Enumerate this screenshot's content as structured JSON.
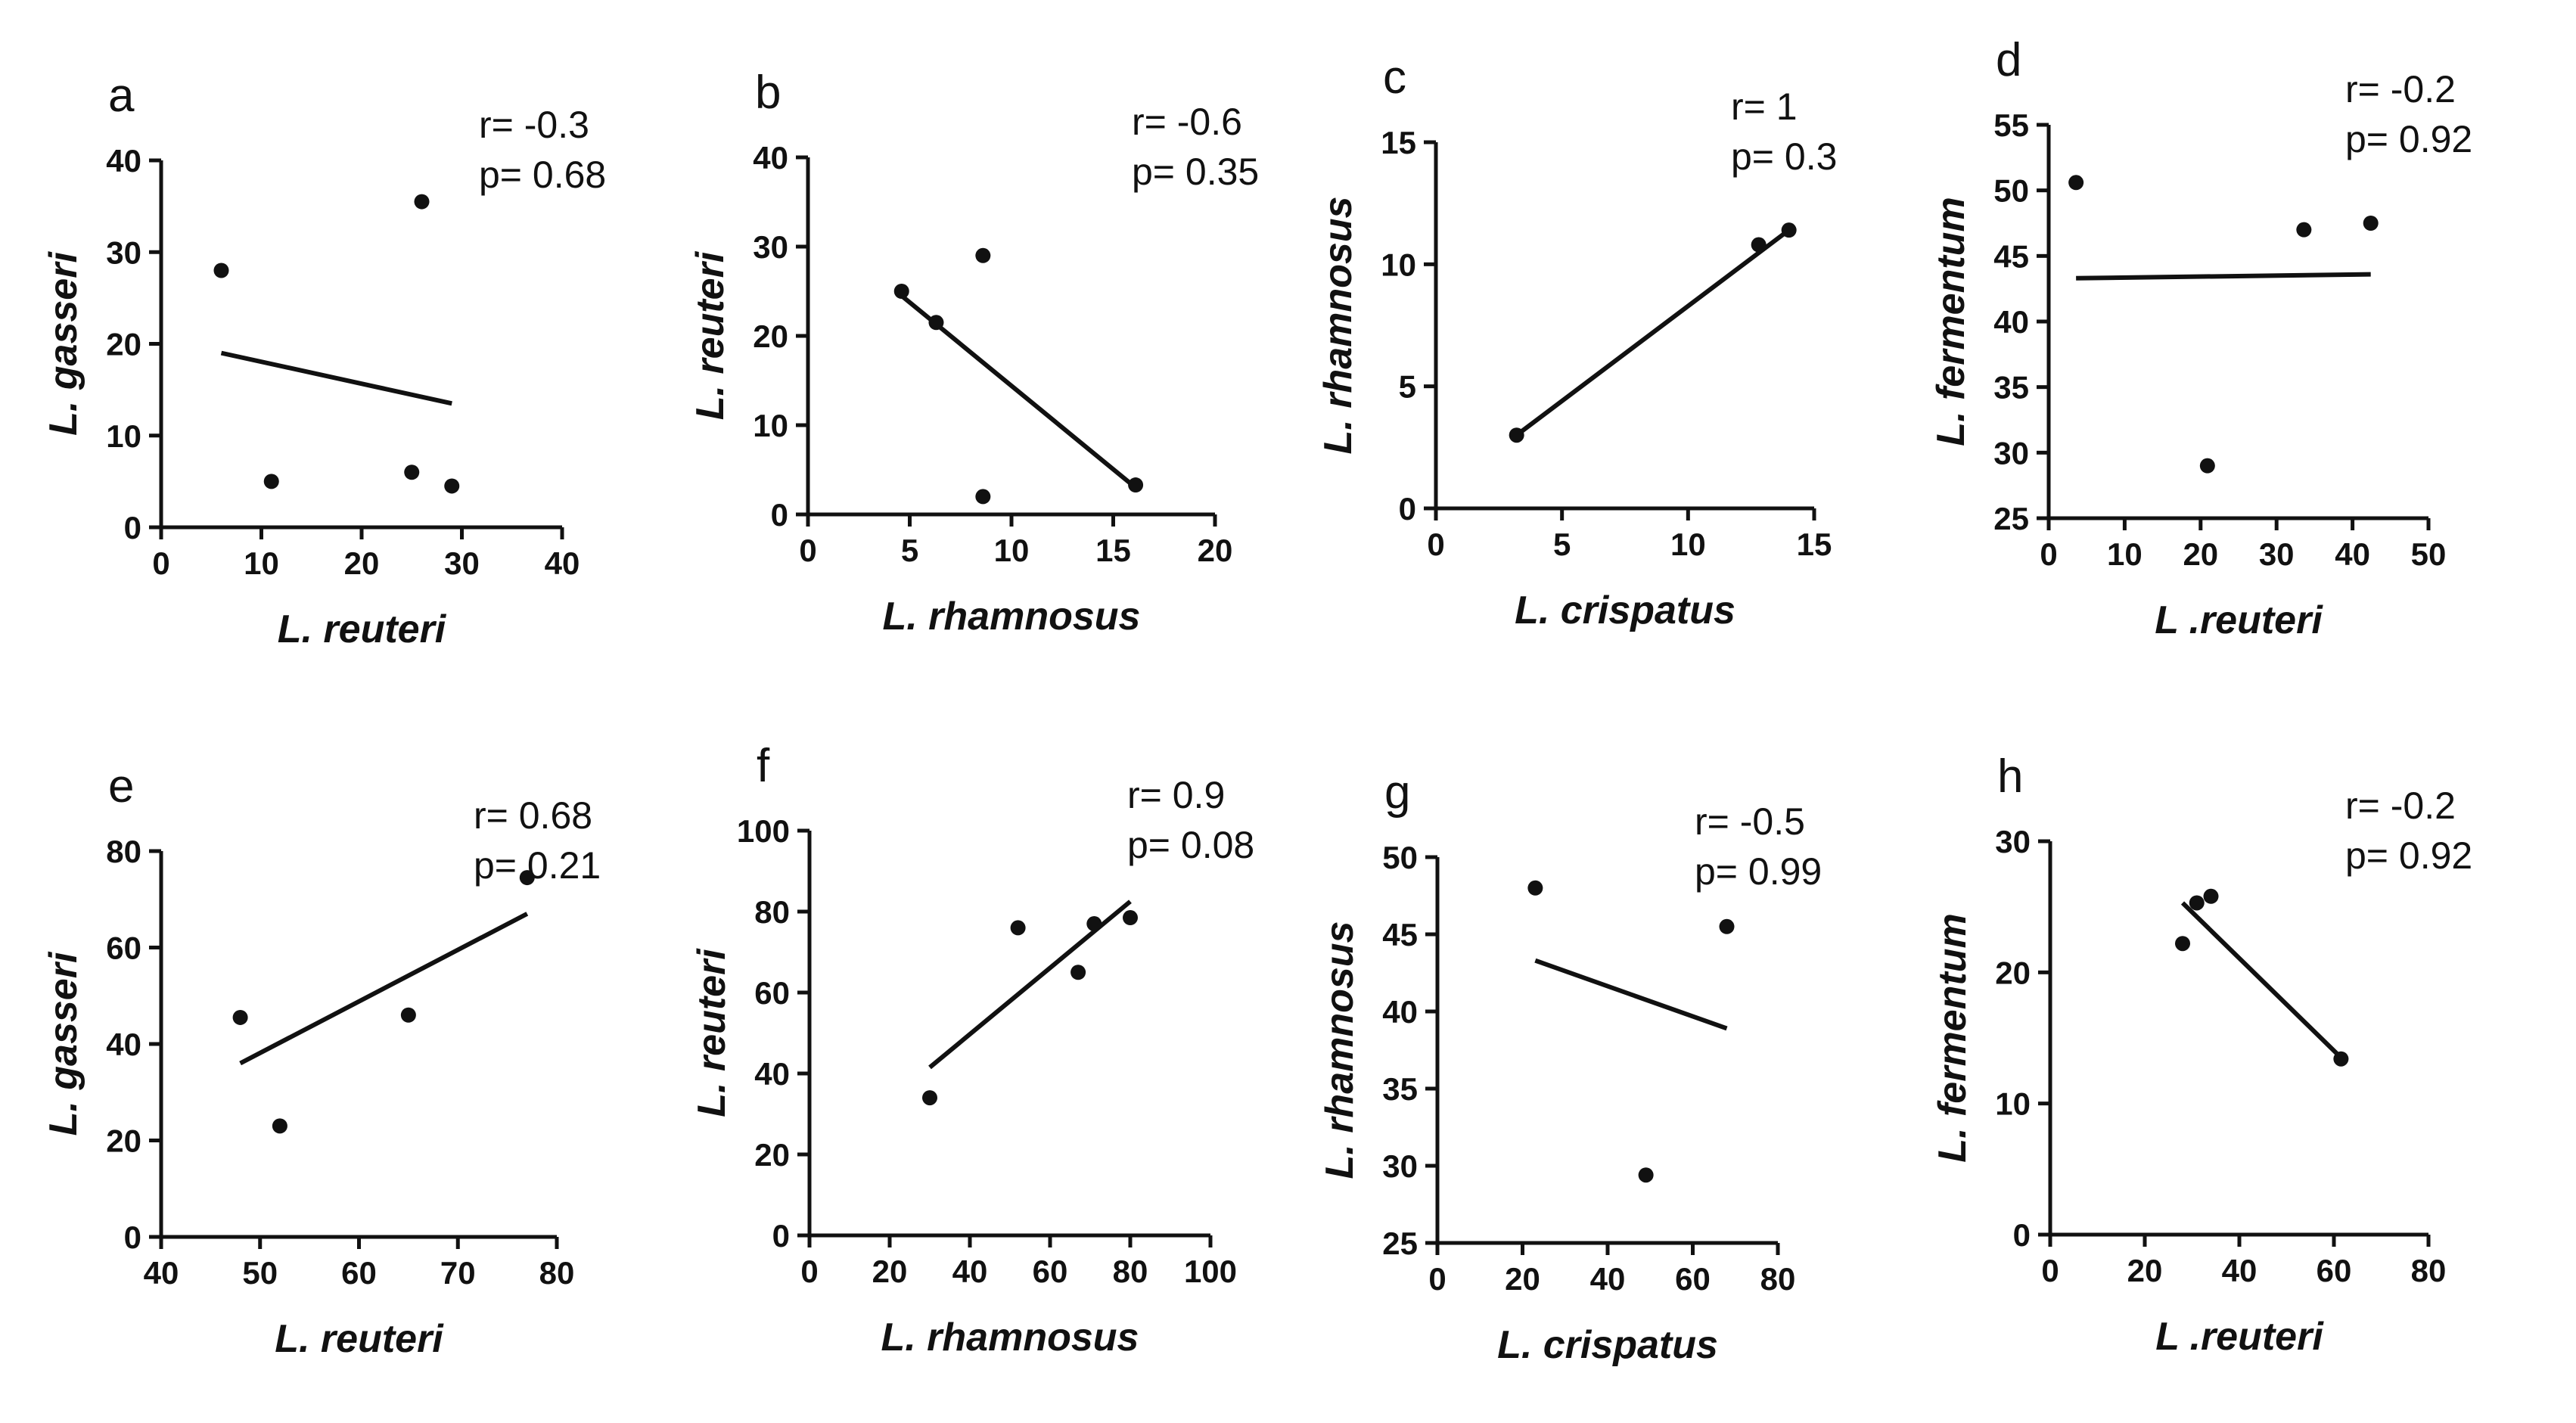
{
  "chart_data": [
    {
      "letter": "a",
      "type": "scatter",
      "xlabel": "L. reuteri",
      "ylabel": "L. gasseri",
      "r_text": "r= -0.3",
      "p_text": "p= 0.68",
      "xlim": [
        0,
        40
      ],
      "ylim": [
        0,
        40
      ],
      "xticks": [
        "0",
        "10",
        "20",
        "30",
        "40"
      ],
      "yticks": [
        "0",
        "10",
        "20",
        "30",
        "40"
      ],
      "points": [
        {
          "x": 6,
          "y": 28
        },
        {
          "x": 11,
          "y": 5
        },
        {
          "x": 25,
          "y": 6
        },
        {
          "x": 26,
          "y": 35.5
        },
        {
          "x": 29,
          "y": 4.5
        }
      ],
      "fit": [
        {
          "x": 6,
          "y": 19
        },
        {
          "x": 29,
          "y": 13.5
        }
      ]
    },
    {
      "letter": "b",
      "type": "scatter",
      "xlabel": "L. rhamnosus",
      "ylabel": "L. reuteri",
      "r_text": "r= -0.6",
      "p_text": "p= 0.35",
      "xlim": [
        0,
        20
      ],
      "ylim": [
        0,
        40
      ],
      "xticks": [
        "0",
        "5",
        "10",
        "15",
        "20"
      ],
      "yticks": [
        "0",
        "10",
        "20",
        "30",
        "40"
      ],
      "points": [
        {
          "x": 4.6,
          "y": 25
        },
        {
          "x": 6.3,
          "y": 21.5
        },
        {
          "x": 8.6,
          "y": 29
        },
        {
          "x": 8.6,
          "y": 2
        },
        {
          "x": 16.1,
          "y": 3.3
        }
      ],
      "fit": [
        {
          "x": 4.6,
          "y": 24.5
        },
        {
          "x": 16.1,
          "y": 3
        }
      ]
    },
    {
      "letter": "c",
      "type": "scatter",
      "xlabel": "L. crispatus",
      "ylabel": "L. rhamnosus",
      "r_text": "r= 1",
      "p_text": "p= 0.3",
      "xlim": [
        0,
        15
      ],
      "ylim": [
        0,
        15
      ],
      "xticks": [
        "0",
        "5",
        "10",
        "15"
      ],
      "yticks": [
        "0",
        "5",
        "10",
        "15"
      ],
      "points": [
        {
          "x": 3.2,
          "y": 3
        },
        {
          "x": 12.8,
          "y": 10.8
        },
        {
          "x": 14,
          "y": 11.4
        }
      ],
      "fit": [
        {
          "x": 3.2,
          "y": 3
        },
        {
          "x": 14,
          "y": 11.4
        }
      ]
    },
    {
      "letter": "d",
      "type": "scatter",
      "xlabel": "L .reuteri",
      "ylabel": "L. fermentum",
      "r_text": "r= -0.2",
      "p_text": "p= 0.92",
      "xlim": [
        0,
        50
      ],
      "ylim": [
        25,
        55
      ],
      "xticks": [
        "0",
        "10",
        "20",
        "30",
        "40",
        "50"
      ],
      "yticks": [
        "25",
        "30",
        "35",
        "40",
        "45",
        "50",
        "55"
      ],
      "points": [
        {
          "x": 3.6,
          "y": 50.6
        },
        {
          "x": 20.9,
          "y": 29
        },
        {
          "x": 33.6,
          "y": 47
        },
        {
          "x": 42.4,
          "y": 47.5
        }
      ],
      "fit": [
        {
          "x": 3.6,
          "y": 43.3
        },
        {
          "x": 42.4,
          "y": 43.6
        }
      ]
    },
    {
      "letter": "e",
      "type": "scatter",
      "xlabel": "L. reuteri",
      "ylabel": "L. gasseri",
      "r_text": "r= 0.68",
      "p_text": "p= 0.21",
      "xlim": [
        40,
        80
      ],
      "ylim": [
        0,
        80
      ],
      "xticks": [
        "40",
        "50",
        "60",
        "70",
        "80"
      ],
      "yticks": [
        "0",
        "20",
        "40",
        "60",
        "80"
      ],
      "points": [
        {
          "x": 48,
          "y": 45.5
        },
        {
          "x": 52,
          "y": 23
        },
        {
          "x": 65,
          "y": 46
        },
        {
          "x": 77,
          "y": 74.5
        }
      ],
      "fit": [
        {
          "x": 48,
          "y": 36
        },
        {
          "x": 77,
          "y": 67
        }
      ]
    },
    {
      "letter": "f",
      "type": "scatter",
      "xlabel": "L. rhamnosus",
      "ylabel": "L. reuteri",
      "r_text": "r= 0.9",
      "p_text": "p= 0.08",
      "xlim": [
        0,
        100
      ],
      "ylim": [
        0,
        100
      ],
      "xticks": [
        "0",
        "20",
        "40",
        "60",
        "80",
        "100"
      ],
      "yticks": [
        "0",
        "20",
        "40",
        "60",
        "80",
        "100"
      ],
      "points": [
        {
          "x": 30,
          "y": 34
        },
        {
          "x": 52,
          "y": 76
        },
        {
          "x": 67,
          "y": 65
        },
        {
          "x": 71,
          "y": 77
        },
        {
          "x": 80,
          "y": 78.5
        }
      ],
      "fit": [
        {
          "x": 30,
          "y": 41.5
        },
        {
          "x": 80,
          "y": 82.5
        }
      ]
    },
    {
      "letter": "g",
      "type": "scatter",
      "xlabel": "L. crispatus",
      "ylabel": "L. rhamnosus",
      "r_text": "r= -0.5",
      "p_text": "p= 0.99",
      "xlim": [
        0,
        80
      ],
      "ylim": [
        25,
        50
      ],
      "xticks": [
        "0",
        "20",
        "40",
        "60",
        "80"
      ],
      "yticks": [
        "25",
        "30",
        "35",
        "40",
        "45",
        "50"
      ],
      "points": [
        {
          "x": 23,
          "y": 48
        },
        {
          "x": 49,
          "y": 29.4
        },
        {
          "x": 68,
          "y": 45.5
        }
      ],
      "fit": [
        {
          "x": 23,
          "y": 43.3
        },
        {
          "x": 68,
          "y": 38.9
        }
      ]
    },
    {
      "letter": "h",
      "type": "scatter",
      "xlabel": "L .reuteri",
      "ylabel": "L. fermentum",
      "r_text": "r= -0.2",
      "p_text": "p= 0.92",
      "xlim": [
        0,
        80
      ],
      "ylim": [
        0,
        30
      ],
      "xticks": [
        "0",
        "20",
        "40",
        "60",
        "80"
      ],
      "yticks": [
        "0",
        "10",
        "20",
        "30"
      ],
      "points": [
        {
          "x": 28,
          "y": 22.2
        },
        {
          "x": 31,
          "y": 25.3
        },
        {
          "x": 34,
          "y": 25.8
        },
        {
          "x": 61.5,
          "y": 13.4
        }
      ],
      "fit": [
        {
          "x": 28,
          "y": 25.3
        },
        {
          "x": 61.5,
          "y": 13.5
        }
      ]
    }
  ]
}
